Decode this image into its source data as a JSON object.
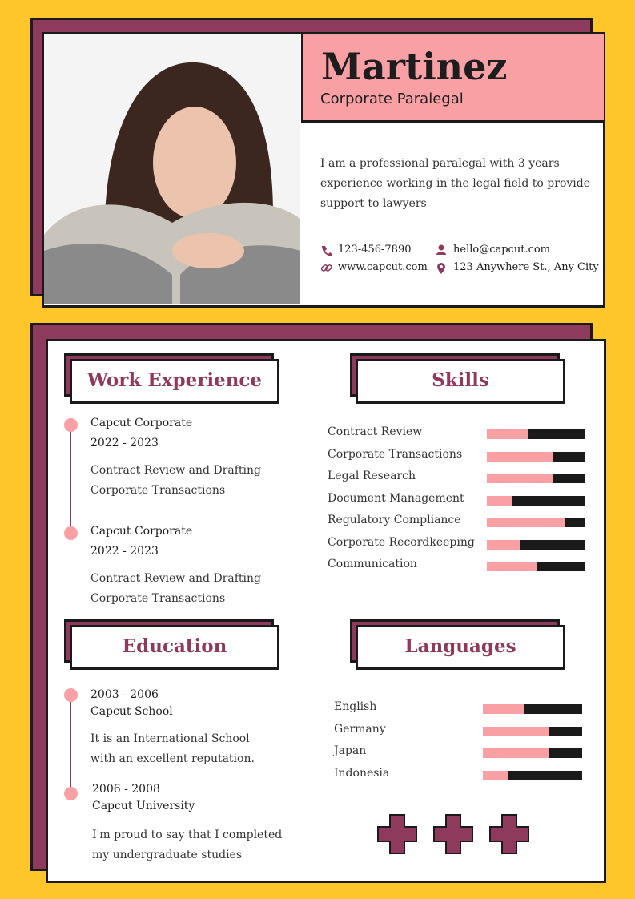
{
  "header": {
    "name": "Martinez",
    "role": "Corporate Paralegal",
    "summary": "I am a professional paralegal with 3 years experience working in the legal field to provide support to lawyers"
  },
  "contact": {
    "phone": "123-456-7890",
    "email": "hello@capcut.com",
    "website": "www.capcut.com",
    "address": "123 Anywhere St., Any City"
  },
  "work_experience": {
    "title": "Work Experience",
    "items": [
      {
        "company": "Capcut Corporate",
        "years": "2022 - 2023",
        "details": [
          "Contract Review and Drafting",
          "Corporate Transactions"
        ]
      },
      {
        "company": "Capcut Corporate",
        "years": "2022 - 2023",
        "details": [
          "Contract Review and Drafting",
          "Corporate Transactions"
        ]
      }
    ]
  },
  "skills": {
    "title": "Skills",
    "items": [
      {
        "name": "Contract Review",
        "level": 42
      },
      {
        "name": "Corporate Transactions",
        "level": 67
      },
      {
        "name": "Legal Research",
        "level": 67
      },
      {
        "name": "Document Management",
        "level": 26
      },
      {
        "name": "Regulatory Compliance",
        "level": 80
      },
      {
        "name": "Corporate Recordkeeping",
        "level": 34
      },
      {
        "name": "Communication",
        "level": 50
      }
    ]
  },
  "education": {
    "title": "Education",
    "items": [
      {
        "years": "2003 - 2006",
        "school": "Capcut School",
        "description": "It is an International School with an excellent reputation."
      },
      {
        "years": "2006 - 2008",
        "school": "Capcut University",
        "description": "I'm proud to say that I completed my undergraduate studies"
      }
    ]
  },
  "languages": {
    "title": "Languages",
    "items": [
      {
        "name": "English",
        "level": 42
      },
      {
        "name": "Germany",
        "level": 67
      },
      {
        "name": "Japan",
        "level": 67
      },
      {
        "name": "Indonesia",
        "level": 26
      }
    ]
  }
}
